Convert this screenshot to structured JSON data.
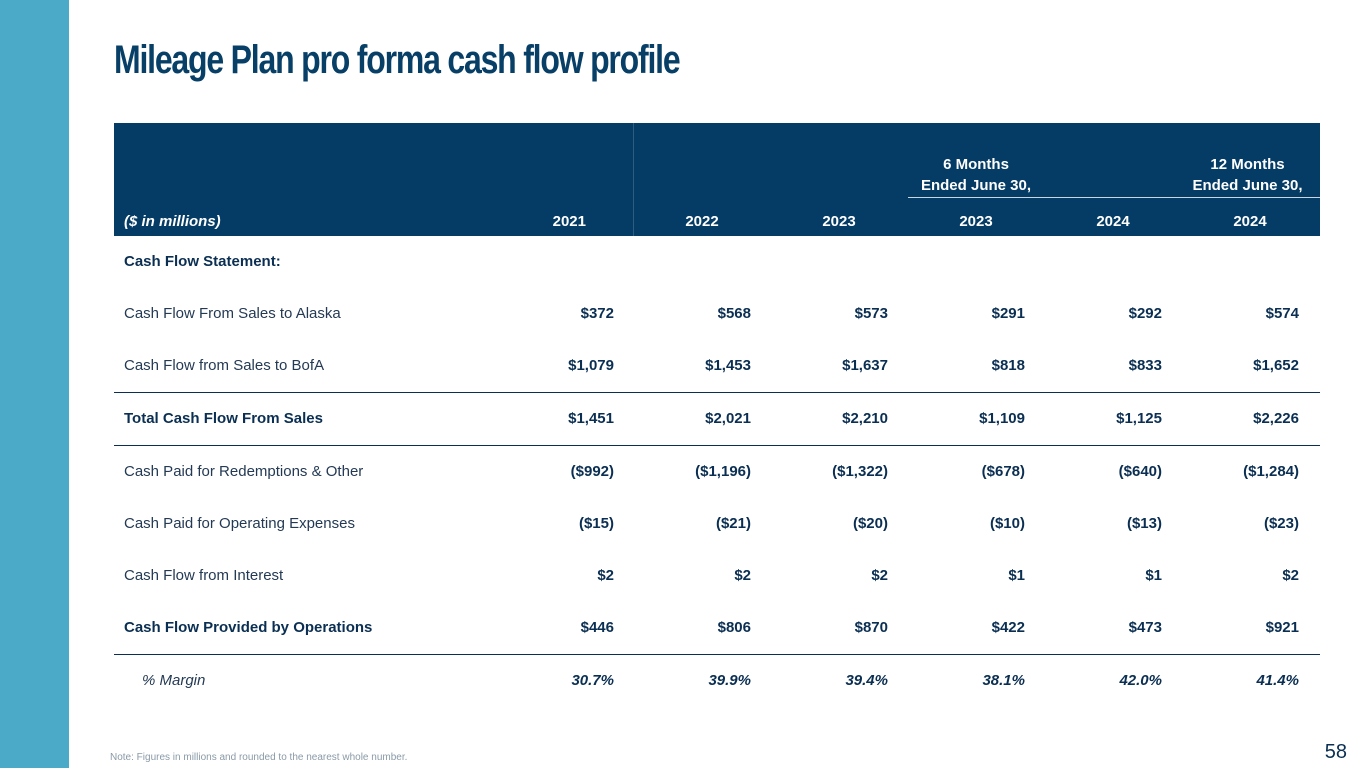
{
  "title": "Mileage Plan pro forma cash flow profile",
  "header": {
    "units_label": "($ in millions)",
    "group_six_months": [
      "6 Months",
      "Ended June 30,"
    ],
    "group_twelve_months": [
      "12 Months",
      "Ended June 30,"
    ],
    "columns": [
      "2021",
      "2022",
      "2023",
      "2023",
      "2024",
      "2024"
    ]
  },
  "rows": [
    {
      "label": "Cash Flow Statement:",
      "values": [
        "",
        "",
        "",
        "",
        "",
        ""
      ]
    },
    {
      "label": "Cash Flow From Sales to Alaska",
      "values": [
        "$372",
        "$568",
        "$573",
        "$291",
        "$292",
        "$574"
      ]
    },
    {
      "label": "Cash Flow from Sales to BofA",
      "values": [
        "$1,079",
        "$1,453",
        "$1,637",
        "$818",
        "$833",
        "$1,652"
      ]
    },
    {
      "label": "Total Cash Flow From Sales",
      "values": [
        "$1,451",
        "$2,021",
        "$2,210",
        "$1,109",
        "$1,125",
        "$2,226"
      ]
    },
    {
      "label": "Cash Paid for Redemptions & Other",
      "values": [
        "($992)",
        "($1,196)",
        "($1,322)",
        "($678)",
        "($640)",
        "($1,284)"
      ]
    },
    {
      "label": "Cash Paid for Operating Expenses",
      "values": [
        "($15)",
        "($21)",
        "($20)",
        "($10)",
        "($13)",
        "($23)"
      ]
    },
    {
      "label": "Cash Flow from Interest",
      "values": [
        "$2",
        "$2",
        "$2",
        "$1",
        "$1",
        "$2"
      ]
    },
    {
      "label": "Cash Flow Provided by Operations",
      "values": [
        "$446",
        "$806",
        "$870",
        "$422",
        "$473",
        "$921"
      ]
    },
    {
      "label": "% Margin",
      "values": [
        "30.7%",
        "39.9%",
        "39.4%",
        "38.1%",
        "42.0%",
        "41.4%"
      ]
    }
  ],
  "note": "Note: Figures in millions and rounded to the nearest whole number.",
  "page_number": "58",
  "colors": {
    "accent_bar": "#4aaac8",
    "navy": "#053c66",
    "title": "#073f67"
  }
}
